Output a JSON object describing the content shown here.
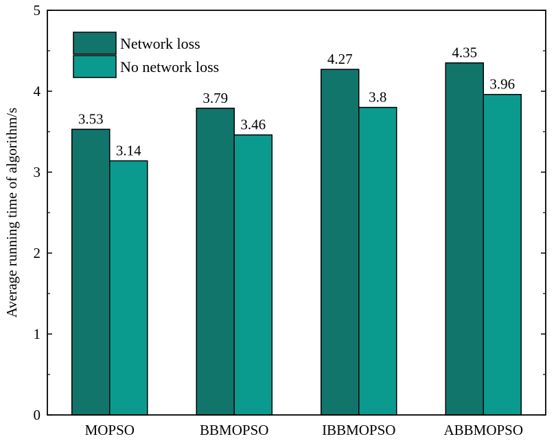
{
  "chart_data": {
    "type": "bar",
    "categories": [
      "MOPSO",
      "BBMOPSO",
      "IBBMOPSO",
      "ABBMOPSO"
    ],
    "series": [
      {
        "name": "Network loss",
        "values": [
          3.53,
          3.79,
          4.27,
          4.35
        ],
        "color": "#11756b"
      },
      {
        "name": "No network loss",
        "values": [
          3.14,
          3.46,
          3.8,
          3.96
        ],
        "color": "#0b9b8e"
      }
    ],
    "data_labels": [
      [
        "3.53",
        "3.79",
        "4.27",
        "4.35"
      ],
      [
        "3.14",
        "3.46",
        "3.8",
        "3.96"
      ]
    ],
    "title": "",
    "xlabel": "",
    "ylabel": "Average running time of algorithm/s",
    "ylim": [
      0,
      5
    ],
    "yticks": [
      "0",
      "1",
      "2",
      "3",
      "4",
      "5"
    ],
    "grid": false,
    "legend_position": "top-left",
    "bar_edge_color": "#000000"
  }
}
